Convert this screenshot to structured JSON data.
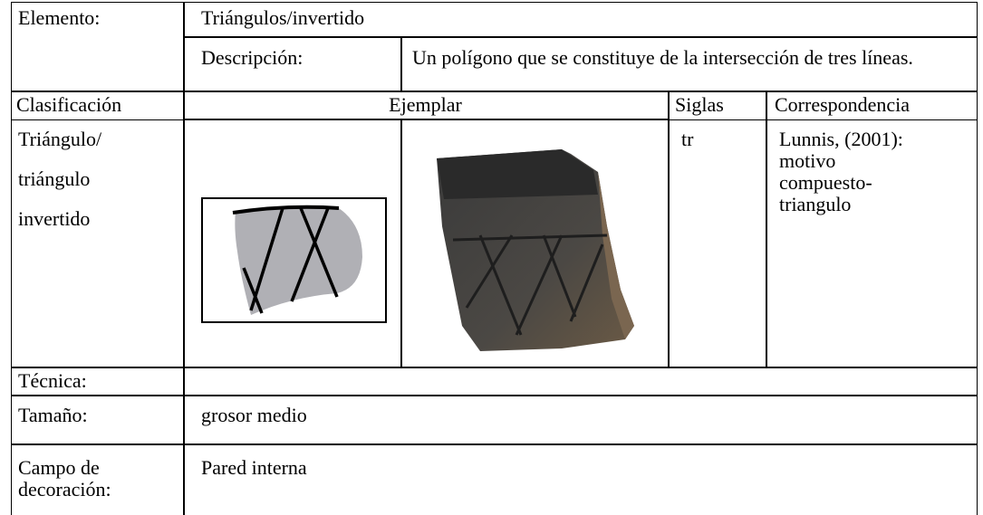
{
  "table": {
    "elemento": {
      "label": "Elemento:",
      "value": "Triángulos/invertido"
    },
    "descripcion": {
      "label": "Descripción:",
      "value": "Un polígono que se constituye de la intersección de tres líneas."
    },
    "header": [
      "Clasificación",
      "Ejemplar",
      "Siglas",
      "Correspondencia"
    ],
    "clasificacion": [
      "Triángulo/",
      "triángulo",
      "invertido"
    ],
    "siglas": "tr",
    "correspondencia": [
      "Lunnis, (2001):",
      "motivo",
      "compuesto-",
      "triangulo"
    ],
    "tecnica": {
      "label": "Técnica:"
    },
    "tamano": {
      "label": "Tamaño:",
      "value": "grosor medio"
    },
    "campo": {
      "label": "Campo de decoración:",
      "value": "Pared interna"
    }
  }
}
